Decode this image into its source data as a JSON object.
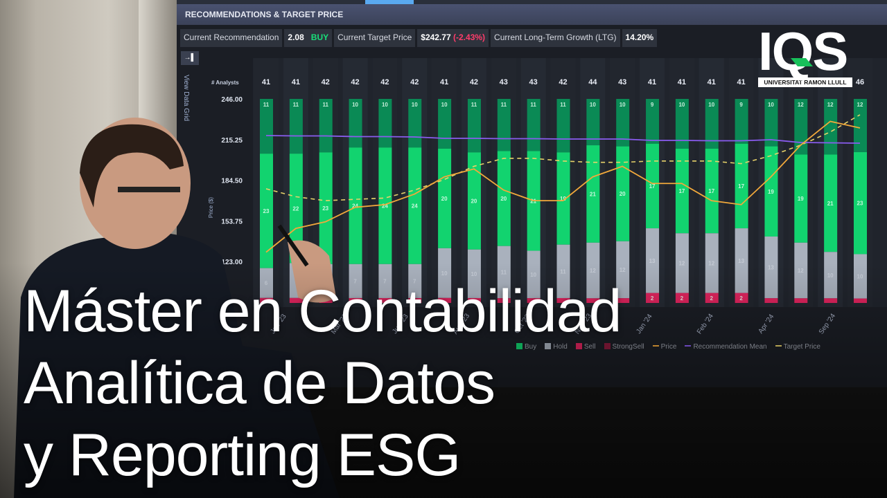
{
  "panel": {
    "title": "RECOMMENDATIONS & TARGET PRICE",
    "view_data_grid": "View Data Grid",
    "expand_icon": "expand-icon"
  },
  "kpis": {
    "rec_label": "Current Recommendation",
    "rec_value": "2.08",
    "rec_rating": "BUY",
    "tp_label": "Current Target Price",
    "tp_value": "$242.77",
    "tp_change": "(-2.43%)",
    "ltg_label": "Current Long-Term Growth (LTG)",
    "ltg_value": "14.20%"
  },
  "chart_data": {
    "type": "bar",
    "ylabel": "Price ($)",
    "analysts_label": "# Analysts",
    "yticks": [
      "246.00",
      "215.25",
      "184.50",
      "153.75",
      "123.00"
    ],
    "ylim": [
      123,
      246
    ],
    "xticks": [
      "Jan '23",
      "Mar '23",
      "Jun '23",
      "Aug '23",
      "Oct '23",
      "Nov '23",
      "Jan '24",
      "Feb '24",
      "Apr '24",
      "Sep '24"
    ],
    "analysts": [
      41,
      41,
      42,
      42,
      42,
      42,
      41,
      42,
      43,
      43,
      42,
      44,
      43,
      41,
      41,
      41,
      41,
      43,
      44,
      44,
      46
    ],
    "series": [
      {
        "name": "StrongBuy",
        "values": [
          11,
          11,
          11,
          10,
          10,
          10,
          10,
          11,
          11,
          11,
          11,
          10,
          10,
          9,
          10,
          10,
          9,
          10,
          12,
          12,
          12
        ]
      },
      {
        "name": "Buy",
        "values": [
          23,
          22,
          23,
          24,
          24,
          24,
          20,
          20,
          20,
          21,
          19,
          21,
          20,
          17,
          17,
          17,
          17,
          19,
          19,
          21,
          23
        ]
      },
      {
        "name": "Hold",
        "values": [
          6,
          7,
          7,
          7,
          7,
          7,
          10,
          10,
          11,
          10,
          11,
          12,
          12,
          13,
          12,
          12,
          13,
          13,
          12,
          10,
          10
        ]
      },
      {
        "name": "Sell",
        "values": [
          1,
          1,
          1,
          1,
          1,
          1,
          1,
          1,
          1,
          1,
          1,
          1,
          1,
          2,
          2,
          2,
          2,
          1,
          1,
          1,
          1
        ]
      },
      {
        "name": "StrongSell",
        "values": [
          0,
          0,
          0,
          0,
          0,
          0,
          0,
          0,
          0,
          0,
          0,
          0,
          0,
          0,
          0,
          0,
          0,
          0,
          0,
          0,
          0
        ]
      }
    ],
    "price": [
      130,
      148,
      153,
      164,
      166,
      174,
      187,
      193,
      177,
      169,
      169,
      187,
      195,
      182,
      182,
      169,
      166,
      187,
      211,
      229,
      224
    ],
    "target_price": [
      178,
      172,
      169,
      170,
      171,
      177,
      185,
      195,
      201,
      201,
      199,
      198,
      198,
      199,
      199,
      199,
      197,
      203,
      211,
      221,
      234
    ],
    "recommendation_mean": [
      2.3,
      2.29,
      2.29,
      2.27,
      2.27,
      2.26,
      2.22,
      2.22,
      2.21,
      2.21,
      2.2,
      2.2,
      2.2,
      2.16,
      2.16,
      2.15,
      2.15,
      2.18,
      2.1,
      2.09,
      2.08
    ],
    "legend": [
      "Buy",
      "Hold",
      "Sell",
      "StrongSell",
      "Price",
      "Recommendation Mean",
      "Target Price"
    ],
    "colors": {
      "StrongBuy": "#0a8a55",
      "Buy": "#12d36f",
      "Hold": "#a9b1bd",
      "Sell": "#e0245e",
      "StrongSell": "#8a1a3c",
      "Price": "#f2a93b",
      "RecMean": "#8a5cf0",
      "Target": "#e8d36a"
    }
  },
  "logo": {
    "text": "IQS",
    "subtitle": "UNIVERSITAT RAMON LLULL"
  },
  "title": {
    "line1": "Máster en Contabilidad",
    "line2": "Analítica de Datos",
    "line3": "y Reporting ESG"
  }
}
